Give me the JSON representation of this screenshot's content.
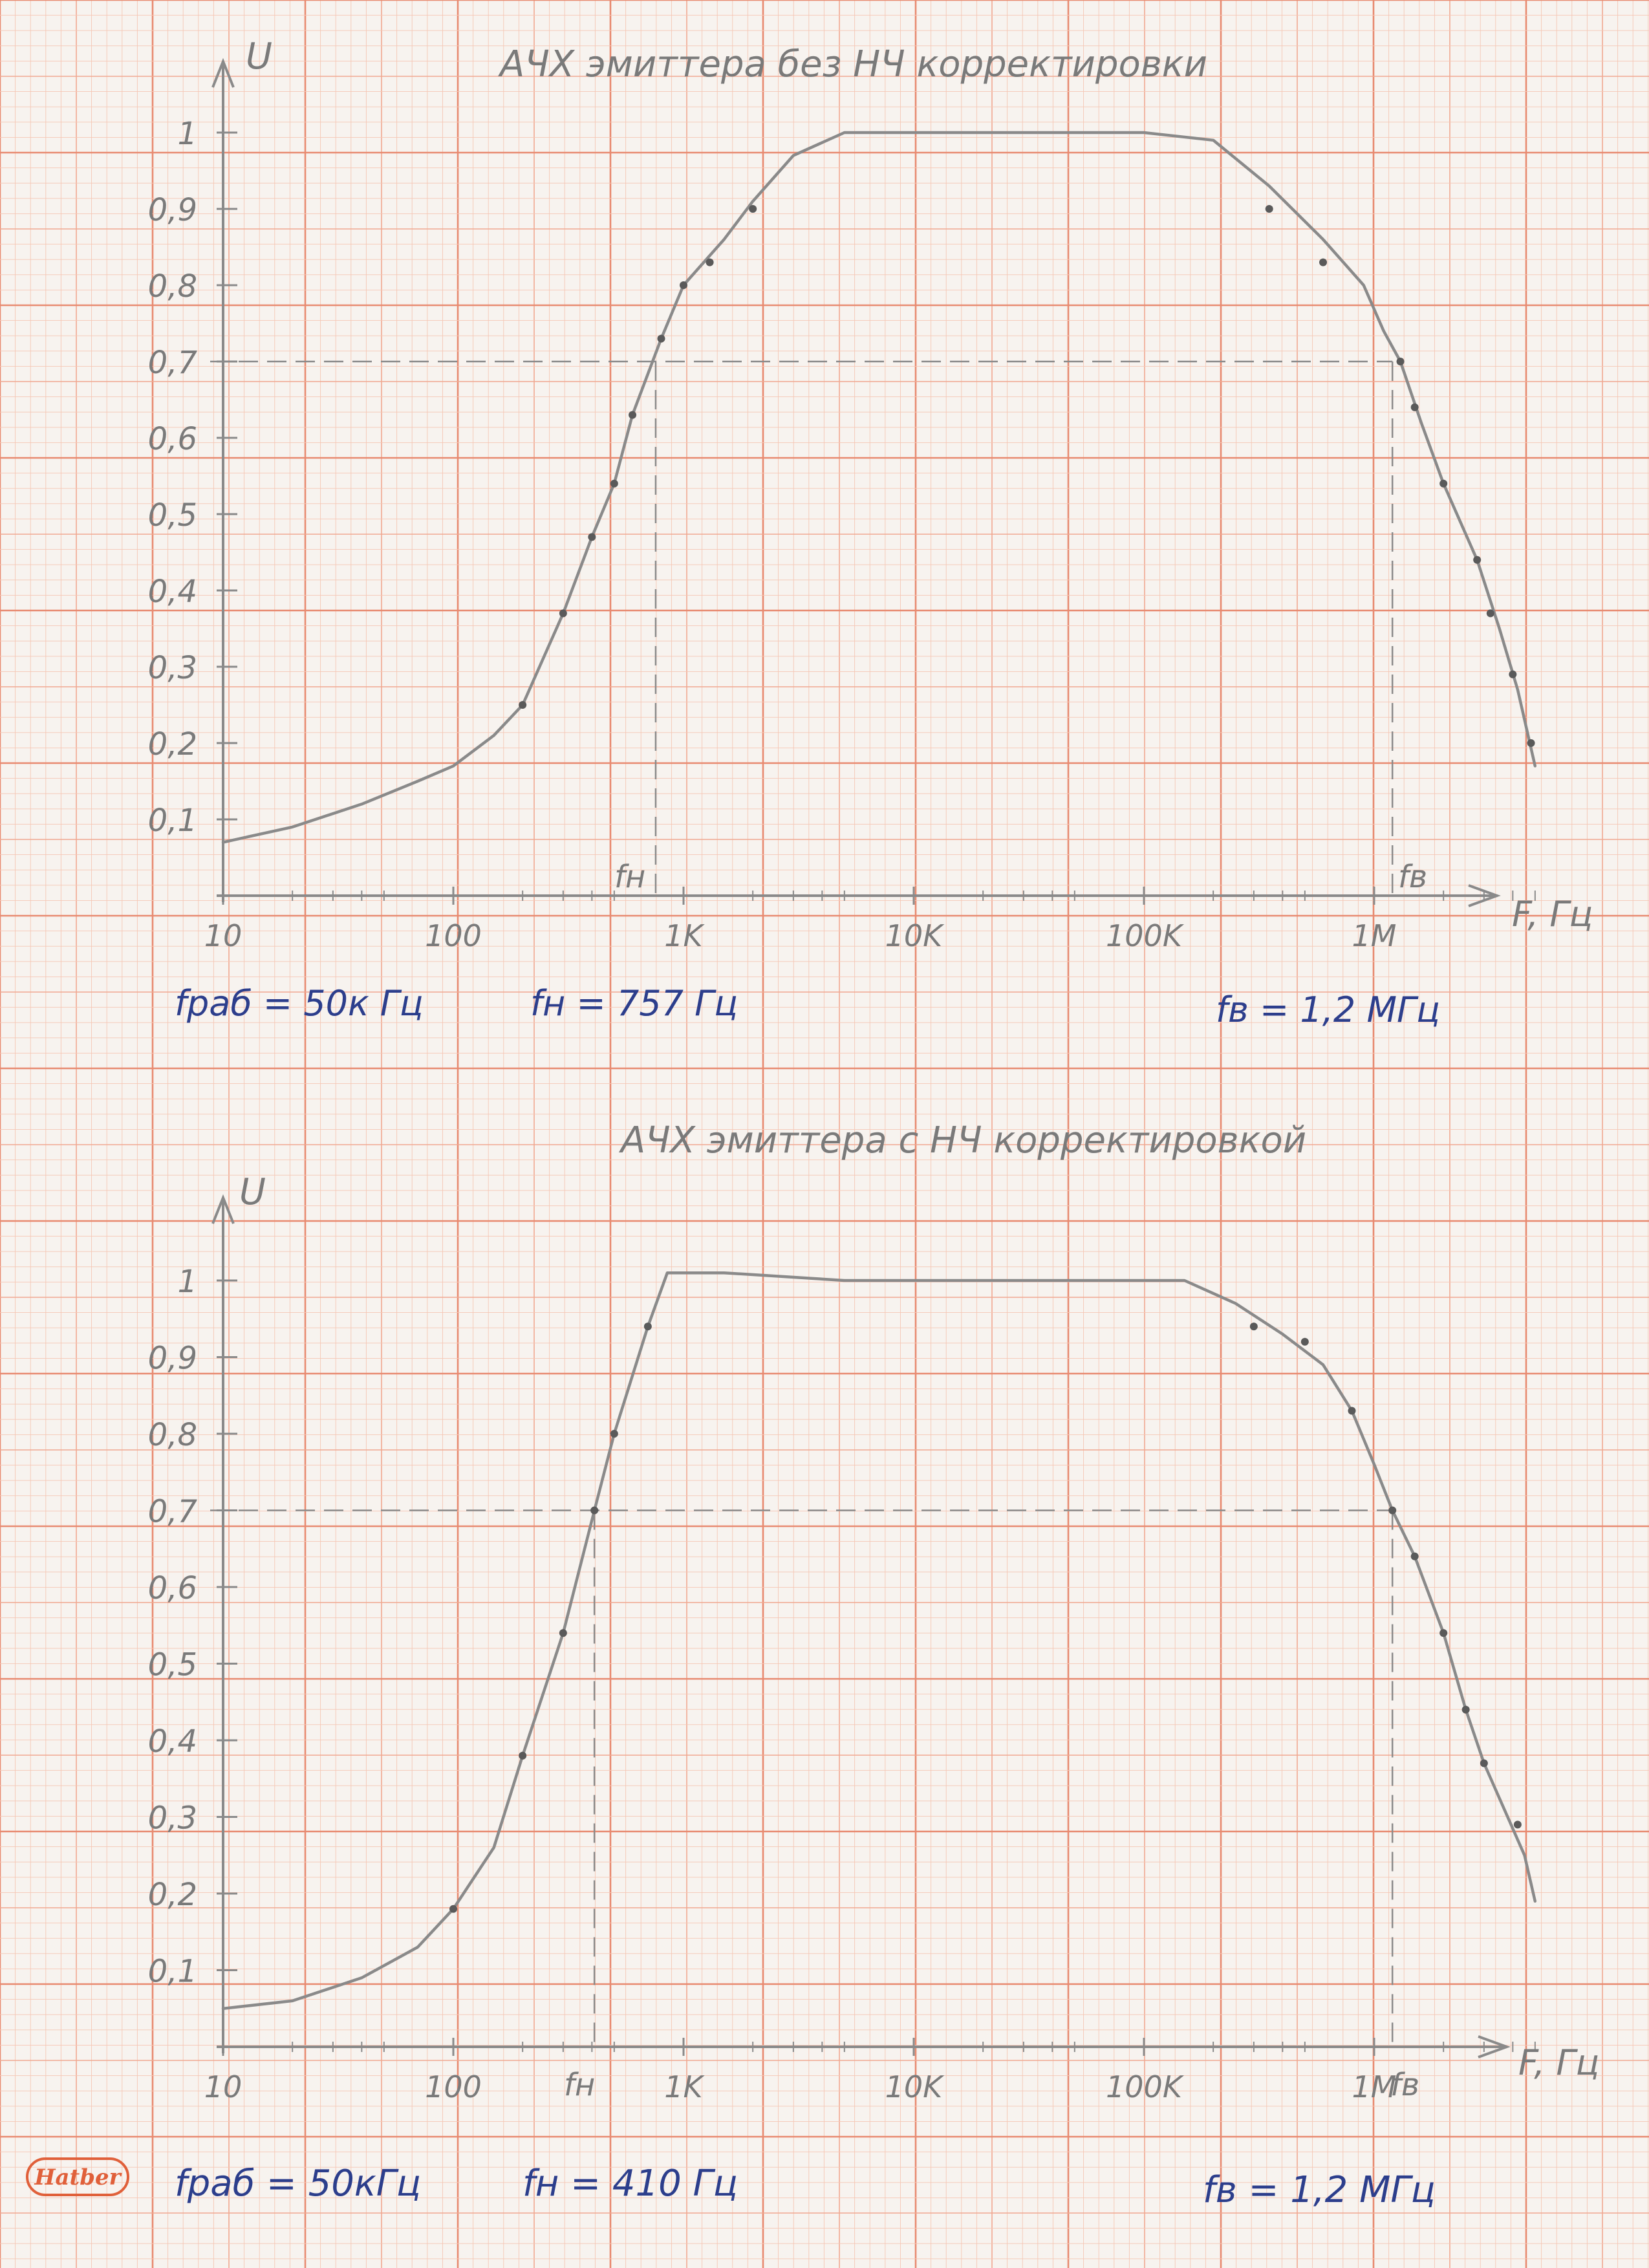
{
  "brand": {
    "logo_text": "Hatber",
    "logo_color": "#e0603a"
  },
  "colors": {
    "grid_fine": "#f6c6b4",
    "grid_medium": "#f0a890",
    "grid_major": "#e88a70",
    "pencil": "#8a8a8a",
    "ink": "#2c3e8c"
  },
  "chart_data": [
    {
      "type": "line",
      "title": "АЧХ эмиттера без НЧ корректировки",
      "xlabel": "F, Гц",
      "ylabel": "U",
      "xscale": "log",
      "xlim": [
        10,
        5000000
      ],
      "ylim": [
        0,
        1.05
      ],
      "x_ticks": [
        10,
        100,
        1000,
        10000,
        100000,
        1000000
      ],
      "x_tick_labels": [
        "10",
        "100",
        "1K",
        "10K",
        "100K",
        "1M"
      ],
      "y_ticks": [
        0.1,
        0.2,
        0.3,
        0.4,
        0.5,
        0.6,
        0.7,
        0.8,
        0.9,
        1.0
      ],
      "y_tick_labels": [
        "0,1",
        "0,2",
        "0,3",
        "0,4",
        "0,5",
        "0,6",
        "0,7",
        "0,8",
        "0,9",
        "1"
      ],
      "cutoff_level": 0.7,
      "marker_low": {
        "label": "fн",
        "x": 757
      },
      "marker_high": {
        "label": "fв",
        "x": 1200000
      },
      "points": [
        [
          200,
          0.25
        ],
        [
          300,
          0.37
        ],
        [
          400,
          0.47
        ],
        [
          500,
          0.54
        ],
        [
          600,
          0.63
        ],
        [
          800,
          0.73
        ],
        [
          1000,
          0.8
        ],
        [
          1300,
          0.83
        ],
        [
          2000,
          0.9
        ],
        [
          350000,
          0.9
        ],
        [
          600000,
          0.83
        ],
        [
          1300000,
          0.7
        ],
        [
          1500000,
          0.64
        ],
        [
          2000000,
          0.54
        ],
        [
          2800000,
          0.44
        ],
        [
          3200000,
          0.37
        ],
        [
          4000000,
          0.29
        ],
        [
          4800000,
          0.2
        ]
      ],
      "curve": [
        [
          10,
          0.07
        ],
        [
          20,
          0.09
        ],
        [
          40,
          0.12
        ],
        [
          70,
          0.15
        ],
        [
          100,
          0.17
        ],
        [
          150,
          0.21
        ],
        [
          200,
          0.25
        ],
        [
          300,
          0.37
        ],
        [
          400,
          0.47
        ],
        [
          500,
          0.54
        ],
        [
          600,
          0.63
        ],
        [
          800,
          0.73
        ],
        [
          1000,
          0.8
        ],
        [
          1500,
          0.86
        ],
        [
          2000,
          0.91
        ],
        [
          3000,
          0.97
        ],
        [
          5000,
          1.0
        ],
        [
          20000,
          1.0
        ],
        [
          100000,
          1.0
        ],
        [
          200000,
          0.99
        ],
        [
          350000,
          0.93
        ],
        [
          600000,
          0.86
        ],
        [
          900000,
          0.8
        ],
        [
          1100000,
          0.74
        ],
        [
          1300000,
          0.7
        ],
        [
          1600000,
          0.62
        ],
        [
          2000000,
          0.54
        ],
        [
          2800000,
          0.44
        ],
        [
          3500000,
          0.35
        ],
        [
          4200000,
          0.27
        ],
        [
          5000000,
          0.17
        ]
      ],
      "notes": {
        "gen": "fраб = 50к Гц",
        "low": "fн = 757 Гц",
        "high": "fв = 1,2 МГц"
      }
    },
    {
      "type": "line",
      "title": "АЧХ эмиттера с НЧ корректировкой",
      "xlabel": "F, Гц",
      "ylabel": "U",
      "xscale": "log",
      "xlim": [
        10,
        5000000
      ],
      "ylim": [
        0,
        1.05
      ],
      "x_ticks": [
        10,
        100,
        1000,
        10000,
        100000,
        1000000
      ],
      "x_tick_labels": [
        "10",
        "100",
        "1K",
        "10K",
        "100K",
        "1M"
      ],
      "y_ticks": [
        0.1,
        0.2,
        0.3,
        0.4,
        0.5,
        0.6,
        0.7,
        0.8,
        0.9,
        1.0
      ],
      "y_tick_labels": [
        "0,1",
        "0,2",
        "0,3",
        "0,4",
        "0,5",
        "0,6",
        "0,7",
        "0,8",
        "0,9",
        "1"
      ],
      "cutoff_level": 0.7,
      "marker_low": {
        "label": "fн",
        "x": 410
      },
      "marker_high": {
        "label": "fв",
        "x": 1200000
      },
      "points": [
        [
          100,
          0.18
        ],
        [
          200,
          0.38
        ],
        [
          300,
          0.54
        ],
        [
          410,
          0.7
        ],
        [
          500,
          0.8
        ],
        [
          700,
          0.94
        ],
        [
          300000,
          0.94
        ],
        [
          500000,
          0.92
        ],
        [
          800000,
          0.83
        ],
        [
          1200000,
          0.7
        ],
        [
          1500000,
          0.64
        ],
        [
          2000000,
          0.54
        ],
        [
          2500000,
          0.44
        ],
        [
          3000000,
          0.37
        ],
        [
          4200000,
          0.29
        ]
      ],
      "curve": [
        [
          10,
          0.05
        ],
        [
          20,
          0.06
        ],
        [
          40,
          0.09
        ],
        [
          70,
          0.13
        ],
        [
          100,
          0.18
        ],
        [
          150,
          0.26
        ],
        [
          200,
          0.38
        ],
        [
          300,
          0.54
        ],
        [
          410,
          0.7
        ],
        [
          500,
          0.8
        ],
        [
          700,
          0.94
        ],
        [
          850,
          1.01
        ],
        [
          1500,
          1.01
        ],
        [
          5000,
          1.0
        ],
        [
          50000,
          1.0
        ],
        [
          150000,
          1.0
        ],
        [
          250000,
          0.97
        ],
        [
          400000,
          0.93
        ],
        [
          600000,
          0.89
        ],
        [
          800000,
          0.83
        ],
        [
          1000000,
          0.76
        ],
        [
          1200000,
          0.7
        ],
        [
          1500000,
          0.64
        ],
        [
          2000000,
          0.54
        ],
        [
          2500000,
          0.44
        ],
        [
          3000000,
          0.37
        ],
        [
          3800000,
          0.3
        ],
        [
          4500000,
          0.25
        ],
        [
          5000000,
          0.19
        ]
      ],
      "notes": {
        "gen": "fраб = 50кГц",
        "low": "fн = 410 Гц",
        "high": "fв = 1,2 МГц"
      }
    }
  ]
}
